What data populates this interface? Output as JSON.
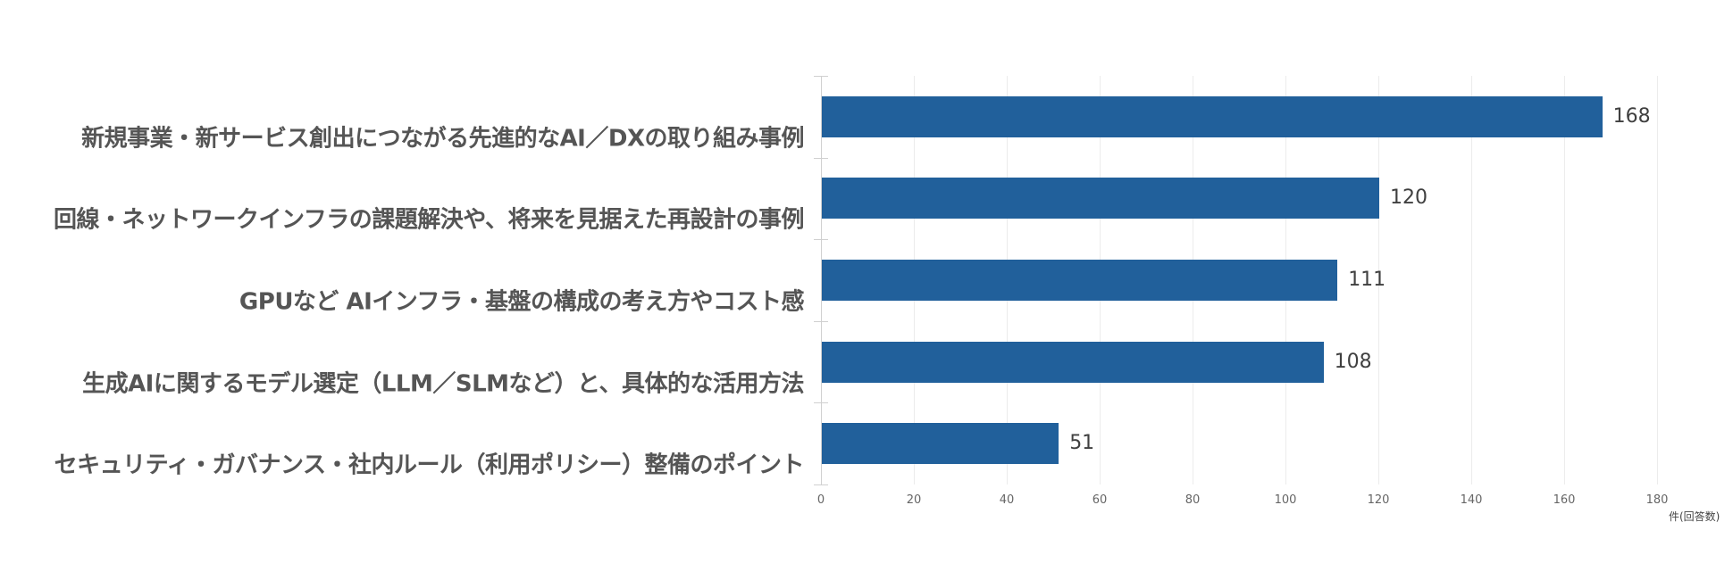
{
  "chart_data": {
    "type": "bar",
    "orientation": "horizontal",
    "title": "",
    "categories": [
      "新規事業・新サービス創出につながる先進的なAI／DXの取り組み事例",
      "回線・ネットワークインフラの課題解決や、将来を見据えた再設計の事例",
      "GPUなど AIインフラ・基盤の構成の考え方やコスト感",
      "生成AIに関するモデル選定（LLM／SLMなど）と、具体的な活用方法",
      "セキュリティ・ガバナンス・社内ルール（利用ポリシー）整備のポイント"
    ],
    "values": [
      168,
      120,
      111,
      108,
      51
    ],
    "value_labels": [
      "168",
      "120",
      "111",
      "108",
      "51"
    ],
    "xlabel": "件(回答数)",
    "ylabel": "",
    "xlim": [
      0,
      180
    ],
    "xticks": [
      "0",
      "20",
      "40",
      "60",
      "80",
      "100",
      "120",
      "140",
      "160",
      "180"
    ],
    "grid": true,
    "legend": null,
    "bar_color": "#21609b"
  }
}
